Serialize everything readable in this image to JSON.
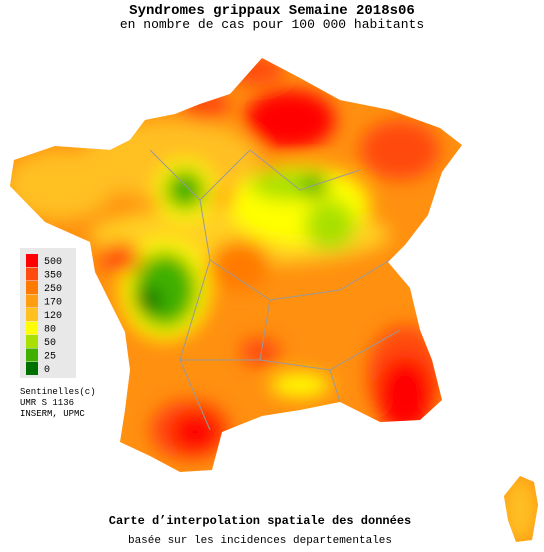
{
  "header": {
    "title": "Syndromes grippaux Semaine 2018s06",
    "subtitle": "en nombre de cas pour 100 000 habitants"
  },
  "legend": {
    "items": [
      {
        "value": 500,
        "color": "#ff0000"
      },
      {
        "value": 350,
        "color": "#ff4a10"
      },
      {
        "value": 250,
        "color": "#ff7a00"
      },
      {
        "value": 170,
        "color": "#ff9e10"
      },
      {
        "value": 120,
        "color": "#ffc020"
      },
      {
        "value": 80,
        "color": "#ffff00"
      },
      {
        "value": 50,
        "color": "#a8e000"
      },
      {
        "value": 25,
        "color": "#40b000"
      },
      {
        "value": 0,
        "color": "#007000"
      }
    ]
  },
  "credits": [
    "Sentinelles(c)",
    "UMR S 1136",
    "INSERM, UPMC"
  ],
  "footer": {
    "title": "Carte d’interpolation spatiale des données",
    "subtitle": "basée sur les incidences departementales"
  }
}
